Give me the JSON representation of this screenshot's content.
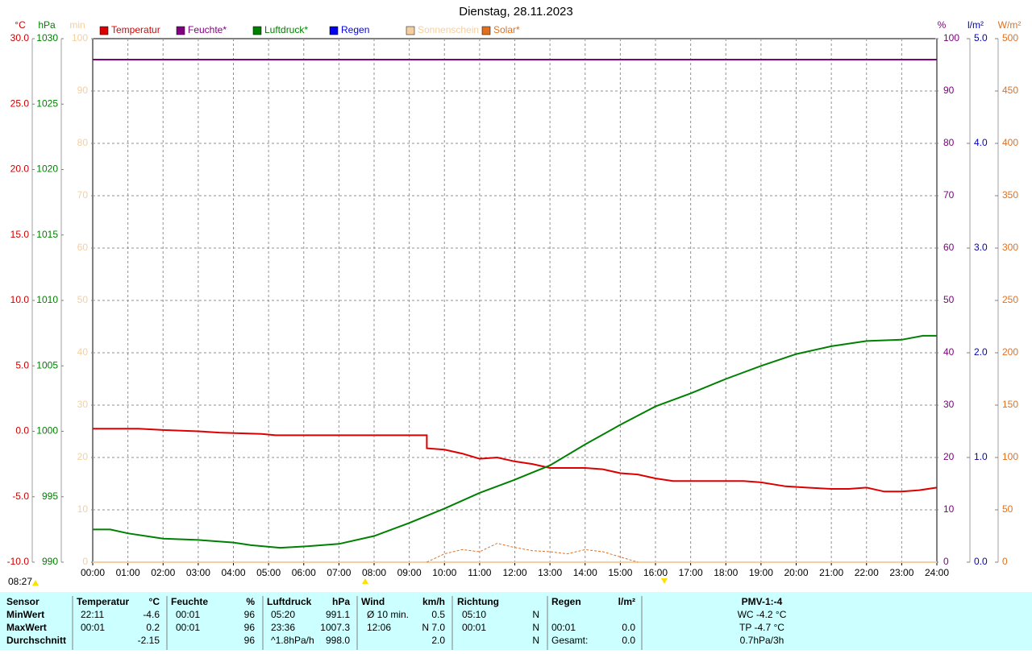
{
  "chart_data": {
    "type": "line",
    "title": "Dienstag, 28.11.2023",
    "xlim": [
      0,
      24
    ],
    "xticks": [
      {
        "value": 0,
        "label": "00:00"
      },
      {
        "value": 1,
        "label": "01:00"
      },
      {
        "value": 2,
        "label": "02:00"
      },
      {
        "value": 3,
        "label": "03:00"
      },
      {
        "value": 4,
        "label": "04:00"
      },
      {
        "value": 5,
        "label": "05:00"
      },
      {
        "value": 6,
        "label": "06:00"
      },
      {
        "value": 7,
        "label": "07:00"
      },
      {
        "value": 8,
        "label": "08:00"
      },
      {
        "value": 9,
        "label": "09:00"
      },
      {
        "value": 10,
        "label": "10:00"
      },
      {
        "value": 11,
        "label": "11:00"
      },
      {
        "value": 12,
        "label": "12:00"
      },
      {
        "value": 13,
        "label": "13:00"
      },
      {
        "value": 14,
        "label": "14:00"
      },
      {
        "value": 15,
        "label": "15:00"
      },
      {
        "value": 16,
        "label": "16:00"
      },
      {
        "value": 17,
        "label": "17:00"
      },
      {
        "value": 18,
        "label": "18:00"
      },
      {
        "value": 19,
        "label": "19:00"
      },
      {
        "value": 20,
        "label": "20:00"
      },
      {
        "value": 21,
        "label": "21:00"
      },
      {
        "value": 22,
        "label": "22:00"
      },
      {
        "value": 23,
        "label": "23:00"
      },
      {
        "value": 24,
        "label": "24:00"
      }
    ],
    "grid": true,
    "axes": [
      {
        "unit": "°C",
        "color": "#cc0000",
        "lim": [
          -10,
          30
        ],
        "ticks": [
          {
            "value": -10,
            "label": "-10.0"
          },
          {
            "value": -5,
            "label": "-5.0"
          },
          {
            "value": 0,
            "label": "0.0"
          },
          {
            "value": 5,
            "label": "5.0"
          },
          {
            "value": 10,
            "label": "10.0"
          },
          {
            "value": 15,
            "label": "15.0"
          },
          {
            "value": 20,
            "label": "20.0"
          },
          {
            "value": 25,
            "label": "25.0"
          },
          {
            "value": 30,
            "label": "30.0"
          }
        ]
      },
      {
        "unit": "hPa",
        "color": "#008000",
        "lim": [
          990,
          1030
        ],
        "ticks": [
          990,
          995,
          1000,
          1005,
          1010,
          1015,
          1020,
          1025,
          1030
        ]
      },
      {
        "unit": "min",
        "color": "#f5cfa0",
        "lim": [
          0,
          100
        ],
        "ticks": [
          0,
          10,
          20,
          30,
          40,
          50,
          60,
          70,
          80,
          90,
          100
        ]
      },
      {
        "unit": "%",
        "color": "#800080",
        "lim": [
          0,
          100
        ],
        "ticks": [
          0,
          10,
          20,
          30,
          40,
          50,
          60,
          70,
          80,
          90,
          100
        ]
      },
      {
        "unit": "l/m²",
        "color": "#0000c0",
        "lim": [
          0,
          5
        ],
        "ticks": [
          {
            "value": 0,
            "label": "0.0"
          },
          {
            "value": 1,
            "label": "1.0"
          },
          {
            "value": 2,
            "label": "2.0"
          },
          {
            "value": 3,
            "label": "3.0"
          },
          {
            "value": 4,
            "label": "4.0"
          },
          {
            "value": 5,
            "label": "5.0"
          }
        ]
      },
      {
        "unit": "W/m²",
        "color": "#e07020",
        "lim": [
          0,
          500
        ],
        "ticks": [
          0,
          50,
          100,
          150,
          200,
          250,
          300,
          350,
          400,
          450,
          500
        ]
      }
    ],
    "series": [
      {
        "name": "Temperatur",
        "color": "#dd0000",
        "axis": 0,
        "x": [
          0,
          1.3,
          2,
          3,
          3.6,
          4.8,
          5.2,
          9.5,
          9.5,
          10,
          10.5,
          11,
          11.5,
          12,
          12.5,
          13,
          14,
          14.5,
          15,
          15.5,
          16,
          16.5,
          17,
          18,
          18.5,
          19,
          19.7,
          20.3,
          21,
          21.5,
          22,
          22.5,
          23,
          23.5,
          24
        ],
        "values": [
          0.2,
          0.2,
          0.1,
          0,
          -0.1,
          -0.2,
          -0.3,
          -0.3,
          -1.3,
          -1.4,
          -1.7,
          -2.1,
          -2.0,
          -2.3,
          -2.5,
          -2.8,
          -2.8,
          -2.9,
          -3.2,
          -3.3,
          -3.6,
          -3.8,
          -3.8,
          -3.8,
          -3.8,
          -3.9,
          -4.2,
          -4.3,
          -4.4,
          -4.4,
          -4.3,
          -4.6,
          -4.6,
          -4.5,
          -4.3
        ]
      },
      {
        "name": "Feuchte*",
        "color": "#800080",
        "axis": 3,
        "x": [
          0,
          24
        ],
        "values": [
          96,
          96
        ]
      },
      {
        "name": "Luftdruck*",
        "color": "#008000",
        "axis": 1,
        "x": [
          0,
          0.5,
          1,
          2,
          3,
          4,
          4.5,
          5.33,
          6,
          7,
          8,
          9,
          10,
          11,
          12,
          13,
          14,
          15,
          16,
          17,
          18,
          19,
          20,
          21,
          22,
          23,
          23.6,
          24
        ],
        "values": [
          992.5,
          992.5,
          992.2,
          991.8,
          991.7,
          991.5,
          991.3,
          991.1,
          991.2,
          991.4,
          992.0,
          993.0,
          994.1,
          995.3,
          996.3,
          997.4,
          999.0,
          1000.5,
          1001.9,
          1002.9,
          1004.0,
          1005.0,
          1005.9,
          1006.5,
          1006.9,
          1007.0,
          1007.3,
          1007.3
        ]
      },
      {
        "name": "Regen",
        "color": "#0000ee",
        "axis": 4,
        "x": [
          0,
          24
        ],
        "values": [
          0,
          0
        ]
      },
      {
        "name": "Sonnenschein",
        "color": "#f5cfa0",
        "axis": 2,
        "x": [
          0,
          24
        ],
        "values": [
          0,
          0
        ]
      },
      {
        "name": "Solar*",
        "color": "#e07020",
        "axis": 5,
        "dashed": true,
        "x": [
          9.5,
          10,
          10.5,
          11,
          11.5,
          12,
          12.5,
          13,
          13.5,
          14,
          14.5,
          15,
          15.5
        ],
        "values": [
          0,
          8,
          12,
          10,
          18,
          14,
          11,
          10,
          8,
          12,
          10,
          5,
          0
        ]
      }
    ],
    "sun_time": "08:27"
  },
  "table": {
    "header": [
      "Sensor",
      "Temperatur",
      "°C",
      "Feuchte",
      "%",
      "Luftdruck",
      "hPa",
      "Wind",
      "km/h",
      "Richtung",
      "Regen",
      "l/m²",
      "PMV-1:-4"
    ],
    "rows": [
      [
        "MinWert",
        "22:11",
        "-4.6",
        "00:01",
        "96",
        "05:20",
        "991.1",
        "Ø 10 min.",
        "0.5",
        "05:10",
        "N",
        null,
        null,
        "WC -4.2 °C"
      ],
      [
        "MaxWert",
        "00:01",
        "0.2",
        "00:01",
        "96",
        "23:36",
        "1007.3",
        "12:06",
        "N 7.0",
        "00:01",
        "N",
        "00:01",
        "0.0",
        "TP -4.7 °C"
      ],
      [
        "Durchschnitt",
        null,
        "-2.15",
        null,
        "96",
        "^1.8hPa/h",
        "998.0",
        null,
        "2.0",
        null,
        "N",
        "Gesamt:",
        "0.0",
        "0.7hPa/3h"
      ]
    ]
  }
}
